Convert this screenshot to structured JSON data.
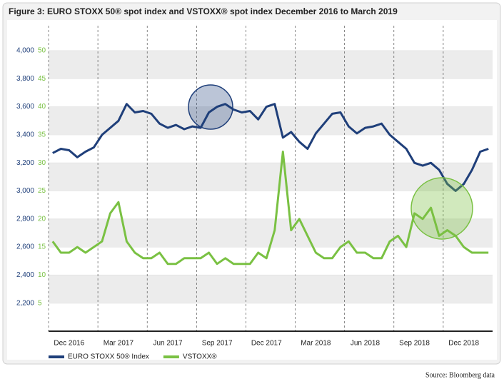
{
  "chart_data": {
    "type": "line",
    "title": "Figure 3: EURO STOXX 50® spot index and VSTOXX® spot index December 2016 to March 2019",
    "source": "Source: Bloomberg data",
    "categories": [
      null,
      null,
      null,
      "Dec 2016",
      null,
      null,
      null,
      null,
      null,
      "Mar 2017",
      null,
      null,
      null,
      null,
      null,
      "Jun 2017",
      null,
      null,
      null,
      null,
      null,
      "Sep 2017",
      null,
      null,
      null,
      null,
      null,
      "Dec 2017",
      null,
      null,
      null,
      null,
      null,
      "Mar 2018",
      null,
      null,
      null,
      null,
      null,
      "Jun 2018",
      null,
      null,
      null,
      null,
      null,
      "Sep 2018",
      null,
      null,
      null,
      null,
      null,
      "Dec 2018",
      null,
      null
    ],
    "series": [
      {
        "name": "EURO STOXX 50® Index",
        "color": "#1f3f7a",
        "values": [
          3270,
          3300,
          3290,
          3240,
          3280,
          3310,
          3400,
          3450,
          3500,
          3620,
          3560,
          3570,
          3550,
          3480,
          3450,
          3470,
          3440,
          3460,
          3450,
          3560,
          3600,
          3620,
          3580,
          3560,
          3570,
          3510,
          3600,
          3620,
          3380,
          3420,
          3350,
          3300,
          3410,
          3480,
          3550,
          3560,
          3460,
          3410,
          3450,
          3460,
          3480,
          3400,
          3350,
          3300,
          3200,
          3180,
          3200,
          3150,
          3050,
          3000,
          3050,
          3150,
          3280,
          3300
        ]
      },
      {
        "name": "VSTOXX®",
        "color": "#7ac143",
        "axis": "y2",
        "values": [
          16,
          14,
          14,
          15,
          14,
          15,
          16,
          21,
          23,
          16,
          14,
          13,
          13,
          14,
          12,
          12,
          13,
          13,
          13,
          14,
          12,
          13,
          12,
          12,
          12,
          14,
          13,
          18,
          32,
          18,
          20,
          17,
          14,
          13,
          13,
          15,
          16,
          14,
          14,
          13,
          13,
          16,
          17,
          15,
          21,
          20,
          22,
          17,
          18,
          17,
          15,
          14,
          14,
          14
        ]
      }
    ],
    "ylim": [
      2000,
      4000
    ],
    "yticks": [
      {
        "value": 2200,
        "label": "2,200"
      },
      {
        "value": 2400,
        "label": "2,400"
      },
      {
        "value": 2600,
        "label": "2,600"
      },
      {
        "value": 2800,
        "label": "2,800"
      },
      {
        "value": 3000,
        "label": "3,000"
      },
      {
        "value": 3200,
        "label": "3,200"
      },
      {
        "value": 3400,
        "label": "3,400"
      },
      {
        "value": 3600,
        "label": "3,600"
      },
      {
        "value": 3800,
        "label": "3,800"
      },
      {
        "value": 4000,
        "label": "4,000"
      }
    ],
    "y2lim": [
      0,
      50
    ],
    "y2ticks": [
      5,
      10,
      15,
      20,
      25,
      30,
      35,
      40,
      45,
      50
    ],
    "grid": true
  }
}
